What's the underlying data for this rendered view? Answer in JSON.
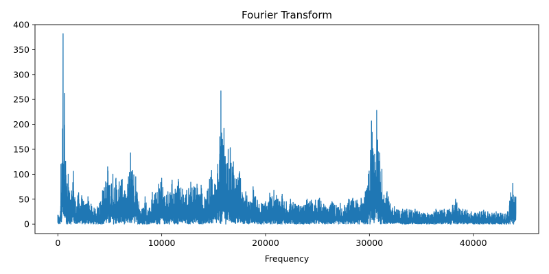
{
  "chart_data": {
    "type": "line",
    "title": "Fourier Transform",
    "xlabel": "Frequency",
    "ylabel": "",
    "xlim": [
      -2200,
      46300
    ],
    "ylim": [
      -19,
      400
    ],
    "grid": false,
    "legend": "none",
    "x_ticks": [
      0,
      10000,
      20000,
      30000,
      40000
    ],
    "y_ticks": [
      0,
      50,
      100,
      150,
      200,
      250,
      300,
      350,
      400
    ],
    "series": [
      {
        "color": "#1f77b4",
        "envelope": [
          [
            0,
            18
          ],
          [
            200,
            15
          ],
          [
            300,
            120
          ],
          [
            400,
            122
          ],
          [
            500,
            382
          ],
          [
            550,
            120
          ],
          [
            650,
            262
          ],
          [
            750,
            126
          ],
          [
            900,
            80
          ],
          [
            1000,
            100
          ],
          [
            1200,
            48
          ],
          [
            1500,
            106
          ],
          [
            1700,
            45
          ],
          [
            2000,
            63
          ],
          [
            2300,
            57
          ],
          [
            2600,
            38
          ],
          [
            2900,
            55
          ],
          [
            3200,
            40
          ],
          [
            3600,
            30
          ],
          [
            4000,
            42
          ],
          [
            4300,
            67
          ],
          [
            4600,
            85
          ],
          [
            4800,
            115
          ],
          [
            5000,
            78
          ],
          [
            5300,
            100
          ],
          [
            5600,
            92
          ],
          [
            5900,
            85
          ],
          [
            6200,
            90
          ],
          [
            6500,
            60
          ],
          [
            6800,
            95
          ],
          [
            7000,
            143
          ],
          [
            7200,
            108
          ],
          [
            7500,
            95
          ],
          [
            7800,
            45
          ],
          [
            8100,
            30
          ],
          [
            8400,
            55
          ],
          [
            8800,
            32
          ],
          [
            9100,
            64
          ],
          [
            9400,
            62
          ],
          [
            9700,
            80
          ],
          [
            10000,
            92
          ],
          [
            10300,
            55
          ],
          [
            10600,
            65
          ],
          [
            11000,
            88
          ],
          [
            11300,
            70
          ],
          [
            11600,
            90
          ],
          [
            12000,
            70
          ],
          [
            12400,
            68
          ],
          [
            12800,
            84
          ],
          [
            13100,
            75
          ],
          [
            13400,
            80
          ],
          [
            13800,
            78
          ],
          [
            14200,
            50
          ],
          [
            14600,
            90
          ],
          [
            14800,
            108
          ],
          [
            15100,
            80
          ],
          [
            15400,
            120
          ],
          [
            15600,
            175
          ],
          [
            15700,
            267
          ],
          [
            15850,
            170
          ],
          [
            16000,
            192
          ],
          [
            16200,
            120
          ],
          [
            16400,
            150
          ],
          [
            16600,
            153
          ],
          [
            16900,
            125
          ],
          [
            17200,
            90
          ],
          [
            17500,
            105
          ],
          [
            17800,
            55
          ],
          [
            18100,
            65
          ],
          [
            18500,
            45
          ],
          [
            18800,
            75
          ],
          [
            19200,
            48
          ],
          [
            19600,
            42
          ],
          [
            20000,
            45
          ],
          [
            20400,
            62
          ],
          [
            20800,
            68
          ],
          [
            21200,
            50
          ],
          [
            21600,
            60
          ],
          [
            22000,
            45
          ],
          [
            22400,
            50
          ],
          [
            22800,
            40
          ],
          [
            23200,
            38
          ],
          [
            23600,
            35
          ],
          [
            24000,
            50
          ],
          [
            24400,
            48
          ],
          [
            24800,
            48
          ],
          [
            25200,
            52
          ],
          [
            25600,
            40
          ],
          [
            26000,
            30
          ],
          [
            26400,
            45
          ],
          [
            26800,
            38
          ],
          [
            27200,
            42
          ],
          [
            27600,
            38
          ],
          [
            28000,
            50
          ],
          [
            28400,
            52
          ],
          [
            28800,
            48
          ],
          [
            29200,
            52
          ],
          [
            29600,
            65
          ],
          [
            29900,
            100
          ],
          [
            30100,
            148
          ],
          [
            30200,
            207
          ],
          [
            30350,
            145
          ],
          [
            30500,
            140
          ],
          [
            30700,
            228
          ],
          [
            30850,
            145
          ],
          [
            31000,
            143
          ],
          [
            31200,
            110
          ],
          [
            31400,
            58
          ],
          [
            31700,
            65
          ],
          [
            32000,
            40
          ],
          [
            32400,
            35
          ],
          [
            32800,
            28
          ],
          [
            33200,
            30
          ],
          [
            33600,
            30
          ],
          [
            34000,
            28
          ],
          [
            34400,
            30
          ],
          [
            34800,
            25
          ],
          [
            35200,
            22
          ],
          [
            35600,
            22
          ],
          [
            36000,
            20
          ],
          [
            36400,
            30
          ],
          [
            36800,
            28
          ],
          [
            37200,
            30
          ],
          [
            37600,
            28
          ],
          [
            38000,
            38
          ],
          [
            38300,
            50
          ],
          [
            38600,
            32
          ],
          [
            39000,
            30
          ],
          [
            39400,
            28
          ],
          [
            39800,
            25
          ],
          [
            40200,
            22
          ],
          [
            40600,
            25
          ],
          [
            41000,
            28
          ],
          [
            41400,
            25
          ],
          [
            41800,
            22
          ],
          [
            42200,
            25
          ],
          [
            42600,
            22
          ],
          [
            43000,
            20
          ],
          [
            43300,
            25
          ],
          [
            43600,
            63
          ],
          [
            43800,
            82
          ],
          [
            44000,
            55
          ],
          [
            44100,
            55
          ]
        ]
      }
    ]
  }
}
